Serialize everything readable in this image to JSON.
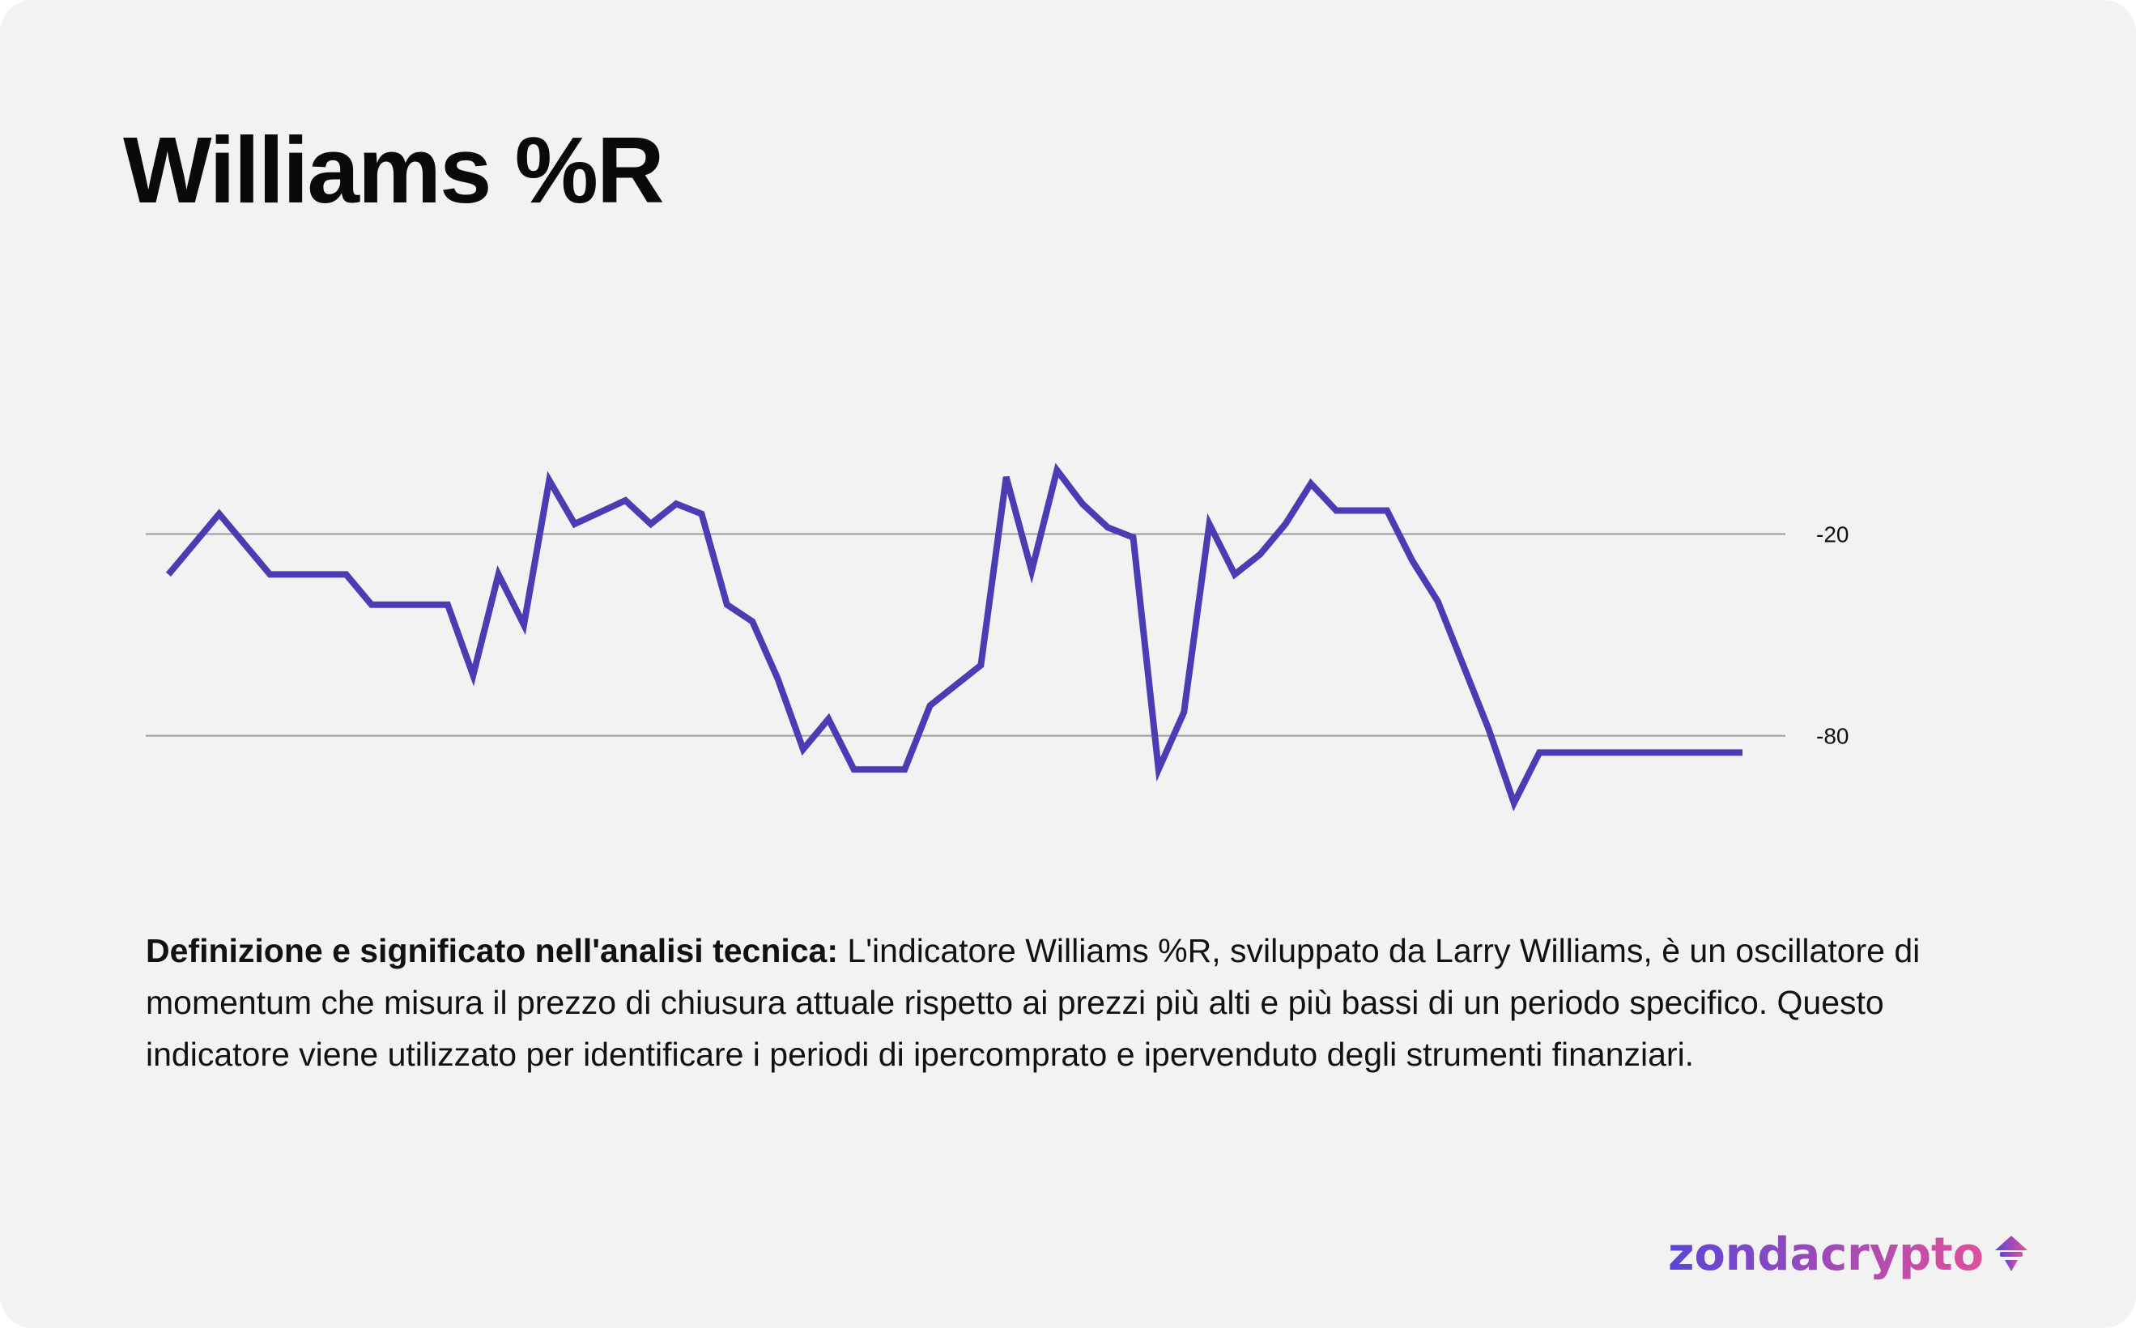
{
  "title": "Williams %R",
  "colors": {
    "background": "#f2f2f2",
    "line": "#4a3db3",
    "reference_line": "#9a9a9a",
    "logo_start": "#5b45d6",
    "logo_end": "#e0509a"
  },
  "chart_data": {
    "type": "line",
    "title": "Williams %R",
    "xlabel": "",
    "ylabel": "",
    "y_ticks": [
      -20,
      -80
    ],
    "y_tick_labels": [
      "-20",
      "-80"
    ],
    "reference_lines": [
      -20,
      -80
    ],
    "ylim": [
      -102,
      10
    ],
    "axis_side": "right",
    "grid": false,
    "series": [
      {
        "name": "Williams %R",
        "x": [
          0,
          2,
          4,
          6,
          7,
          8,
          9,
          11,
          12,
          13,
          14,
          15,
          16,
          18,
          19,
          20,
          21,
          22,
          23,
          24,
          25,
          26,
          27,
          28,
          29,
          30,
          31,
          32,
          33,
          34,
          35,
          36,
          37,
          38,
          39,
          40,
          41,
          42,
          43,
          44,
          45,
          46,
          47,
          48,
          49,
          50,
          52,
          53,
          54,
          55,
          56,
          57,
          58,
          59,
          60,
          61,
          62
        ],
        "values": [
          -32,
          -14,
          -32,
          -32,
          -32,
          -41,
          -41,
          -41,
          -62,
          -32,
          -47,
          -4,
          -17,
          -10,
          -17,
          -11,
          -14,
          -41,
          -46,
          -63,
          -84,
          -75,
          -90,
          -90,
          -90,
          -71,
          -65,
          -59,
          -3,
          -31,
          -1,
          -11,
          -18,
          -21,
          -90,
          -73,
          -17,
          -32,
          -26,
          -17,
          -5,
          -13,
          -13,
          -13,
          -28,
          -40,
          -78,
          -100,
          -85,
          -85,
          -85,
          -85,
          -85,
          -85,
          -85,
          -85,
          -85
        ]
      }
    ]
  },
  "description": {
    "bold": "Definizione e significato nell'analisi tecnica:",
    "text": " L'indicatore Williams %R, sviluppato da Larry Williams, è un oscillatore di momentum che misura il prezzo di chiusura attuale rispetto ai prezzi più alti e più bassi di un periodo specifico. Questo indicatore viene utilizzato per identificare i periodi di ipercomprato e ipervenduto degli strumenti finanziari."
  },
  "logo": {
    "text": "zondacrypto",
    "icon": "mushroom-logo-icon"
  }
}
